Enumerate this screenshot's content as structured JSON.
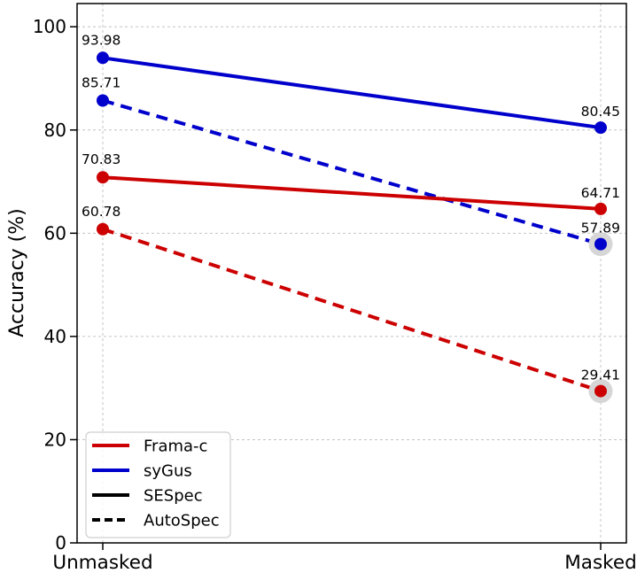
{
  "chart_data": {
    "type": "line",
    "title": "",
    "xlabel": "",
    "ylabel": "Accuracy (%)",
    "categories": [
      "Unmasked",
      "Masked"
    ],
    "yticks": [
      "0",
      "20",
      "40",
      "60",
      "80",
      "100"
    ],
    "ytick_values": [
      0,
      20,
      40,
      60,
      80,
      100
    ],
    "ylim": [
      0,
      104.5
    ],
    "grid": true,
    "grid_style": "dashed",
    "colors": {
      "frama_c": "#cc0000",
      "sygus": "#0000cc",
      "black": "#000000",
      "grid": "#c4c4c4",
      "halo": "#d6d6d6",
      "axis": "#000000"
    },
    "series": [
      {
        "name": "syGus-SESpec",
        "tool": "syGus",
        "spec_method": "SESpec",
        "color": "#0000cc",
        "style": "solid",
        "values": [
          93.98,
          80.45
        ],
        "labels": [
          "93.98",
          "80.45"
        ],
        "highlight": [
          false,
          false
        ]
      },
      {
        "name": "syGus-AutoSpec",
        "tool": "syGus",
        "spec_method": "AutoSpec",
        "color": "#0000cc",
        "style": "dashed",
        "values": [
          85.71,
          57.89
        ],
        "labels": [
          "85.71",
          "57.89"
        ],
        "highlight": [
          false,
          true
        ]
      },
      {
        "name": "Frama-c-SESpec",
        "tool": "Frama-c",
        "spec_method": "SESpec",
        "color": "#cc0000",
        "style": "solid",
        "values": [
          70.83,
          64.71
        ],
        "labels": [
          "70.83",
          "64.71"
        ],
        "highlight": [
          false,
          false
        ]
      },
      {
        "name": "Frama-c-AutoSpec",
        "tool": "Frama-c",
        "spec_method": "AutoSpec",
        "color": "#cc0000",
        "style": "dashed",
        "values": [
          60.78,
          29.41
        ],
        "labels": [
          "60.78",
          "29.41"
        ],
        "highlight": [
          false,
          true
        ]
      }
    ],
    "legend": {
      "position": "lower-left",
      "entries": [
        {
          "label": "Frama-c",
          "color": "#cc0000",
          "style": "solid"
        },
        {
          "label": "syGus",
          "color": "#0000cc",
          "style": "solid"
        },
        {
          "label": "SESpec",
          "color": "#000000",
          "style": "solid"
        },
        {
          "label": "AutoSpec",
          "color": "#000000",
          "style": "dashed"
        }
      ]
    }
  }
}
